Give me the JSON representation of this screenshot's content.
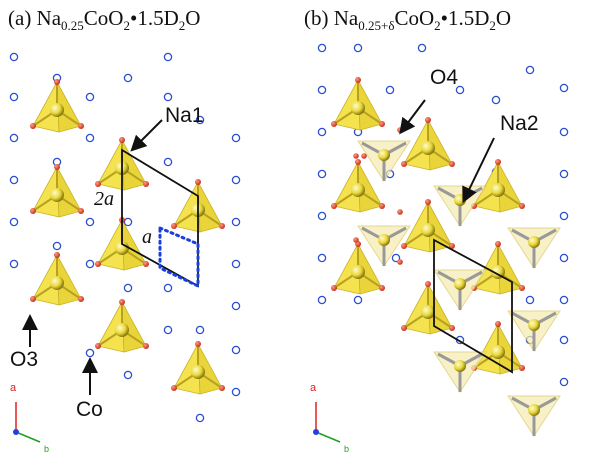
{
  "panel_a": {
    "title_prefix": "(a) Na",
    "title_sub_na": "0.25",
    "title_mid": "CoO",
    "title_sub_o": "2",
    "title_dot": "•",
    "title_water": "1.5D",
    "title_sub_d": "2",
    "title_end": "O",
    "labels": {
      "na1": "Na1",
      "o3": "O3",
      "co": "Co",
      "two_a": "2a",
      "a": "a"
    },
    "axes": {
      "a": "a",
      "b": "b"
    }
  },
  "panel_b": {
    "title_prefix": "(b) Na",
    "title_sub_na": "0.25+δ",
    "title_mid": "CoO",
    "title_sub_o": "2",
    "title_dot": "•",
    "title_water": "1.5D",
    "title_sub_d": "2",
    "title_end": "O",
    "labels": {
      "o4": "O4",
      "na2": "Na2"
    },
    "axes": {
      "a": "a",
      "b": "b"
    }
  },
  "colors": {
    "tetra": "#f2e04a",
    "tetra_edge": "#c9b32a",
    "sphere": "#e8d83a",
    "oxygen": "#c8321e",
    "cobalt": "#2a4fd0",
    "cell": "#111111",
    "dotted": "#1a3fe0",
    "axis_a": "#e02020",
    "axis_b": "#20a020",
    "axis_c": "#2040e0"
  }
}
